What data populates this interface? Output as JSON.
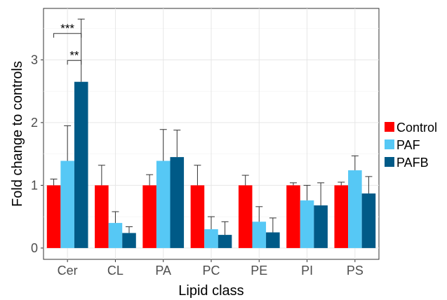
{
  "chart_data": {
    "type": "bar",
    "title": "",
    "xlabel": "Lipid class",
    "ylabel": "Fold change to controls",
    "categories": [
      "Cer",
      "CL",
      "PA",
      "PC",
      "PE",
      "PI",
      "PS"
    ],
    "ylim": [
      -0.18,
      3.82
    ],
    "yticks": [
      0,
      1,
      2,
      3
    ],
    "grid": true,
    "legend_position": "right",
    "series": [
      {
        "name": "Control",
        "color": "#ff0000",
        "values": [
          1.0,
          1.0,
          1.0,
          1.0,
          1.0,
          1.0,
          1.0
        ],
        "errors": [
          0.1,
          0.32,
          0.17,
          0.32,
          0.16,
          0.04,
          0.05
        ]
      },
      {
        "name": "PAF",
        "color": "#56c8f5",
        "values": [
          1.39,
          0.4,
          1.39,
          0.3,
          0.42,
          0.76,
          1.24
        ],
        "errors": [
          0.56,
          0.18,
          0.5,
          0.2,
          0.24,
          0.24,
          0.23
        ]
      },
      {
        "name": "PAFB",
        "color": "#005a87",
        "values": [
          2.65,
          0.24,
          1.45,
          0.21,
          0.25,
          0.68,
          0.87
        ],
        "errors": [
          1.0,
          0.1,
          0.43,
          0.21,
          0.23,
          0.36,
          0.27
        ]
      }
    ],
    "annotations": [
      {
        "text": "***",
        "category": "Cer",
        "from_series": "Control",
        "to_series": "PAFB",
        "y": 3.42
      },
      {
        "text": "**",
        "category": "Cer",
        "from_series": "PAF",
        "to_series": "PAFB",
        "y": 2.99
      }
    ]
  }
}
